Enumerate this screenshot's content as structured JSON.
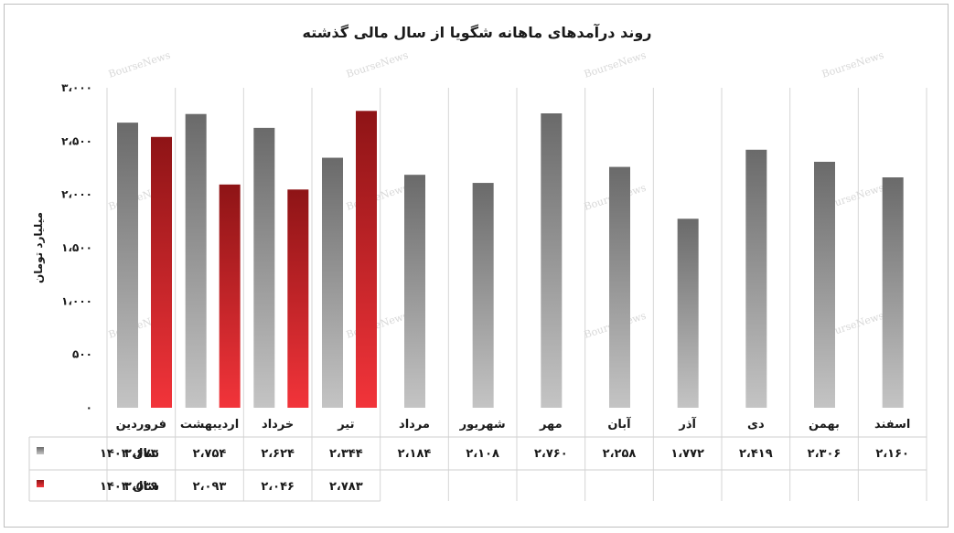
{
  "chart_data": {
    "type": "bar",
    "title": "روند درآمدهای ماهانه شگویا از سال مالی گذشته",
    "ylabel": "میلیارد تومان",
    "ylim": [
      0,
      3000
    ],
    "ytick_values": [
      0,
      500,
      1000,
      1500,
      2000,
      2500,
      3000
    ],
    "ytick_labels": [
      "۰",
      "۵۰۰",
      "۱،۰۰۰",
      "۱،۵۰۰",
      "۲،۰۰۰",
      "۲،۵۰۰",
      "۳،۰۰۰"
    ],
    "categories": [
      "فروردین",
      "اردیبهشت",
      "خرداد",
      "تیر",
      "مرداد",
      "شهریور",
      "مهر",
      "آبان",
      "آذر",
      "دی",
      "بهمن",
      "اسفند"
    ],
    "series": [
      {
        "name": "سال ۱۴۰۲",
        "color": "#808080",
        "values": [
          2673,
          2754,
          2624,
          2344,
          2184,
          2108,
          2760,
          2258,
          1772,
          2419,
          2306,
          2160
        ],
        "labels": [
          "۲،۶۷۳",
          "۲،۷۵۴",
          "۲،۶۲۴",
          "۲،۳۴۴",
          "۲،۱۸۴",
          "۲،۱۰۸",
          "۲،۷۶۰",
          "۲،۲۵۸",
          "۱،۷۷۲",
          "۲،۴۱۹",
          "۲،۳۰۶",
          "۲،۱۶۰"
        ]
      },
      {
        "name": "سال ۱۴۰۳",
        "color": "#d42a2a",
        "values": [
          2539,
          2093,
          2046,
          2783,
          null,
          null,
          null,
          null,
          null,
          null,
          null,
          null
        ],
        "labels": [
          "۲،۵۳۹",
          "۲،۰۹۳",
          "۲،۰۴۶",
          "۲،۷۸۳",
          "",
          "",
          "",
          "",
          "",
          "",
          "",
          ""
        ]
      }
    ],
    "grid": true,
    "legend": "in data table",
    "watermark": "BourseNews"
  }
}
